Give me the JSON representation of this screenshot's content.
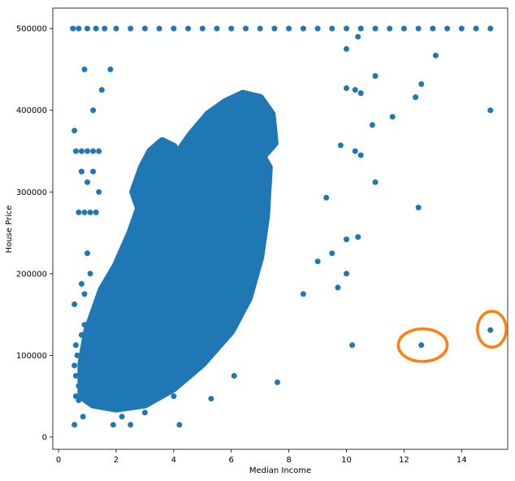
{
  "chart_data": {
    "type": "scatter",
    "xlabel": "Median Income",
    "ylabel": "House Price",
    "xlim": [
      -0.2,
      15.6
    ],
    "ylim": [
      -15000,
      525000
    ],
    "x_ticks": [
      0,
      2,
      4,
      6,
      8,
      10,
      12,
      14
    ],
    "x_tick_labels": [
      "0",
      "2",
      "4",
      "6",
      "8",
      "10",
      "12",
      "14"
    ],
    "y_ticks": [
      0,
      100000,
      200000,
      300000,
      400000,
      500000
    ],
    "y_tick_labels": [
      "0",
      "100000",
      "200000",
      "300000",
      "400000",
      "500000"
    ],
    "grid": false,
    "colors": {
      "points": "#1f77b4",
      "annotation": "#ff7f0e"
    },
    "series": [
      {
        "points": [
          [
            0.5,
            500001
          ],
          [
            0.7,
            500001
          ],
          [
            1.0,
            500001
          ],
          [
            1.3,
            500001
          ],
          [
            1.6,
            500001
          ],
          [
            2.0,
            500001
          ],
          [
            2.5,
            500001
          ],
          [
            3.0,
            500001
          ],
          [
            3.5,
            500001
          ],
          [
            4.0,
            500001
          ],
          [
            4.5,
            500001
          ],
          [
            5.0,
            500001
          ],
          [
            5.5,
            500001
          ],
          [
            6.0,
            500001
          ],
          [
            6.5,
            500001
          ],
          [
            7.0,
            500001
          ],
          [
            7.5,
            500001
          ],
          [
            8.0,
            500001
          ],
          [
            8.5,
            500001
          ],
          [
            9.0,
            500001
          ],
          [
            9.5,
            500001
          ],
          [
            10.0,
            500001
          ],
          [
            10.5,
            500001
          ],
          [
            11.0,
            500001
          ],
          [
            11.5,
            500001
          ],
          [
            12.0,
            500001
          ],
          [
            12.5,
            500001
          ],
          [
            13.0,
            500001
          ],
          [
            13.5,
            500001
          ],
          [
            14.0,
            500001
          ],
          [
            14.5,
            500001
          ],
          [
            15.0,
            500001
          ],
          [
            0.55,
            375000
          ],
          [
            0.6,
            350000
          ],
          [
            0.8,
            350000
          ],
          [
            1.0,
            350000
          ],
          [
            1.2,
            350000
          ],
          [
            1.4,
            350000
          ],
          [
            0.9,
            450000
          ],
          [
            1.2,
            400000
          ],
          [
            1.5,
            425000
          ],
          [
            1.8,
            450000
          ],
          [
            0.7,
            275000
          ],
          [
            0.9,
            275000
          ],
          [
            1.1,
            275000
          ],
          [
            1.3,
            275000
          ],
          [
            0.8,
            325000
          ],
          [
            1.0,
            312000
          ],
          [
            1.2,
            325000
          ],
          [
            1.4,
            300000
          ],
          [
            0.55,
            162500
          ],
          [
            0.6,
            112500
          ],
          [
            0.65,
            100000
          ],
          [
            0.55,
            87500
          ],
          [
            0.6,
            75000
          ],
          [
            0.7,
            62500
          ],
          [
            0.6,
            50000
          ],
          [
            0.55,
            15000
          ],
          [
            0.7,
            45000
          ],
          [
            0.8,
            187500
          ],
          [
            0.9,
            175000
          ],
          [
            1.0,
            225000
          ],
          [
            1.1,
            200000
          ],
          [
            0.9,
            137500
          ],
          [
            0.8,
            125000
          ],
          [
            0.85,
            25000
          ],
          [
            1.9,
            15000
          ],
          [
            2.2,
            25000
          ],
          [
            2.5,
            15000
          ],
          [
            3.0,
            30000
          ],
          [
            4.2,
            15000
          ],
          [
            4.0,
            50000
          ],
          [
            5.3,
            47000
          ],
          [
            6.1,
            75000
          ],
          [
            7.6,
            67000
          ],
          [
            8.5,
            175000
          ],
          [
            9.0,
            215000
          ],
          [
            9.3,
            293000
          ],
          [
            9.5,
            225000
          ],
          [
            9.7,
            183000
          ],
          [
            10.0,
            200000
          ],
          [
            10.0,
            242000
          ],
          [
            10.2,
            112500
          ],
          [
            10.4,
            245000
          ],
          [
            11.0,
            312000
          ],
          [
            12.5,
            281000
          ],
          [
            9.8,
            357000
          ],
          [
            10.3,
            350000
          ],
          [
            10.5,
            345000
          ],
          [
            10.9,
            382000
          ],
          [
            11.6,
            392000
          ],
          [
            12.4,
            416000
          ],
          [
            12.6,
            432000
          ],
          [
            13.1,
            467000
          ],
          [
            10.0,
            427000
          ],
          [
            10.3,
            425000
          ],
          [
            10.5,
            421000
          ],
          [
            11.0,
            442000
          ],
          [
            10.0,
            475000
          ],
          [
            10.4,
            490000
          ],
          [
            12.6,
            112500
          ],
          [
            15.0,
            131000
          ],
          [
            15.0,
            400000
          ]
        ]
      }
    ],
    "annotations": [
      {
        "shape": "ellipse",
        "x": 12.65,
        "y": 112500,
        "rx": 0.85,
        "ry": 20000
      },
      {
        "shape": "ellipse",
        "x": 15.05,
        "y": 132000,
        "rx": 0.5,
        "ry": 22000
      }
    ]
  }
}
